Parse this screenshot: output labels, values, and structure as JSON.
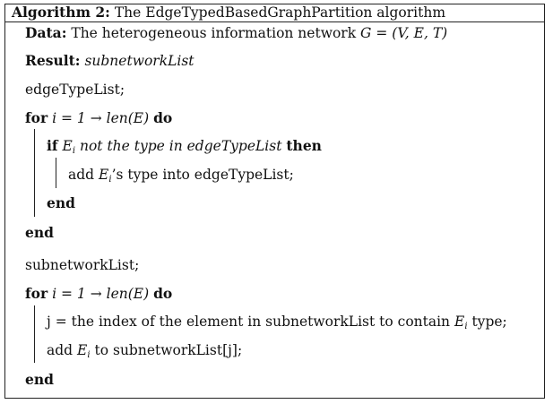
{
  "algorithm": {
    "label": "Algorithm 2:",
    "name": "The EdgeTypedBasedGraphPartition algorithm"
  },
  "data_line": {
    "keyword": "Data:",
    "text": "The heterogeneous information network",
    "math": "G = (V, E, T)"
  },
  "result_line": {
    "keyword": "Result:",
    "value": "subnetworkList"
  },
  "init1": "edgeTypeList;",
  "loop1": {
    "for_kw": "for",
    "cond": "i = 1 → len(E)",
    "do_kw": "do",
    "if_kw": "if",
    "if_var": "E",
    "if_sub": "i",
    "if_cond": "not the type in edgeTypeList",
    "then_kw": "then",
    "body_var": "E",
    "body_sub": "i",
    "body_text": "’s type into edgeTypeList;",
    "body_prefix": "add",
    "inner_end": "end",
    "outer_end": "end"
  },
  "init2": "subnetworkList;",
  "loop2": {
    "for_kw": "for",
    "cond": "i = 1 → len(E)",
    "do_kw": "do",
    "stmt1_text": "j = the index of the element in subnetworkList to contain",
    "stmt1_var": "E",
    "stmt1_sub": "i",
    "stmt1_tail": "type;",
    "stmt2_prefix": "add",
    "stmt2_var": "E",
    "stmt2_sub": "i",
    "stmt2_tail": "to subnetworkList[j];",
    "end": "end"
  }
}
